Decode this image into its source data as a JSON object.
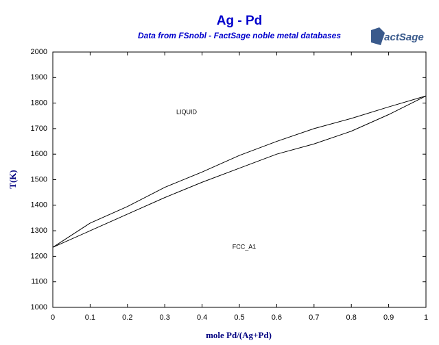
{
  "chart_data": {
    "type": "line",
    "title": "Ag - Pd",
    "subtitle": "Data from FSnobl - FactSage noble metal databases",
    "logo": "FactSage",
    "x_label": "mole Pd/(Ag+Pd)",
    "y_label": "T(K)",
    "x": [
      0,
      0.1,
      0.2,
      0.3,
      0.4,
      0.5,
      0.6,
      0.7,
      0.8,
      0.9,
      1
    ],
    "series": [
      {
        "color": "#000000",
        "values": [
          1235,
          1330,
          1395,
          1470,
          1530,
          1595,
          1650,
          1700,
          1740,
          1785,
          1828
        ]
      },
      {
        "color": "#000000",
        "values": [
          1235,
          1300,
          1365,
          1430,
          1490,
          1545,
          1600,
          1640,
          1690,
          1755,
          1828
        ]
      }
    ],
    "annotations": [
      "LIQUID",
      "FCC_A1"
    ],
    "xlim": [
      0,
      1
    ],
    "xticks": [
      0,
      0.1,
      0.2,
      0.3,
      0.4,
      0.5,
      0.6,
      0.7,
      0.8,
      0.9,
      1
    ],
    "ylim": [
      1000,
      2000
    ],
    "yticks": [
      1000,
      1100,
      1200,
      1300,
      1400,
      1500,
      1600,
      1700,
      1800,
      1900,
      2000
    ],
    "grid": false
  }
}
